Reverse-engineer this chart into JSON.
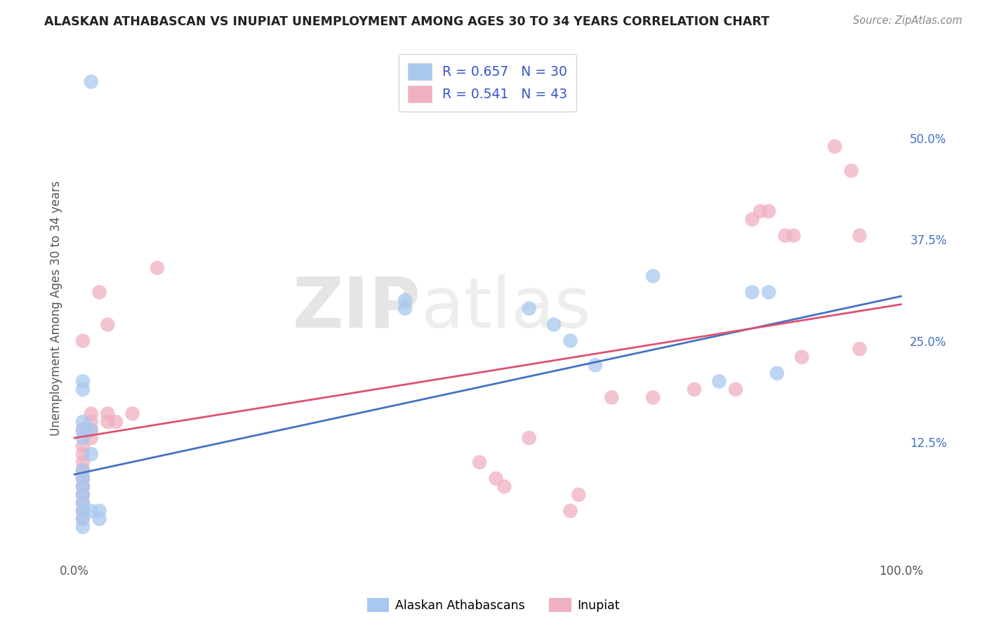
{
  "title": "ALASKAN ATHABASCAN VS INUPIAT UNEMPLOYMENT AMONG AGES 30 TO 34 YEARS CORRELATION CHART",
  "source": "Source: ZipAtlas.com",
  "ylabel": "Unemployment Among Ages 30 to 34 years",
  "legend_blue_r": "R = 0.657",
  "legend_blue_n": "N = 30",
  "legend_pink_r": "R = 0.541",
  "legend_pink_n": "N = 43",
  "legend_blue_label": "Alaskan Athabascans",
  "legend_pink_label": "Inupiat",
  "blue_color": "#a8c8f0",
  "pink_color": "#f0b0c0",
  "blue_line_color": "#4472c4",
  "pink_line_color": "#e05070",
  "blue_scatter": [
    [
      0.02,
      0.57
    ],
    [
      0.01,
      0.2
    ],
    [
      0.01,
      0.19
    ],
    [
      0.01,
      0.15
    ],
    [
      0.01,
      0.14
    ],
    [
      0.01,
      0.13
    ],
    [
      0.01,
      0.09
    ],
    [
      0.01,
      0.08
    ],
    [
      0.01,
      0.07
    ],
    [
      0.01,
      0.06
    ],
    [
      0.01,
      0.05
    ],
    [
      0.01,
      0.04
    ],
    [
      0.01,
      0.03
    ],
    [
      0.01,
      0.02
    ],
    [
      0.02,
      0.14
    ],
    [
      0.02,
      0.11
    ],
    [
      0.02,
      0.04
    ],
    [
      0.03,
      0.04
    ],
    [
      0.03,
      0.03
    ],
    [
      0.4,
      0.3
    ],
    [
      0.4,
      0.29
    ],
    [
      0.55,
      0.29
    ],
    [
      0.58,
      0.27
    ],
    [
      0.6,
      0.25
    ],
    [
      0.63,
      0.22
    ],
    [
      0.7,
      0.33
    ],
    [
      0.78,
      0.2
    ],
    [
      0.82,
      0.31
    ],
    [
      0.84,
      0.31
    ],
    [
      0.85,
      0.21
    ]
  ],
  "pink_scatter": [
    [
      0.01,
      0.25
    ],
    [
      0.01,
      0.14
    ],
    [
      0.01,
      0.12
    ],
    [
      0.01,
      0.11
    ],
    [
      0.01,
      0.1
    ],
    [
      0.01,
      0.09
    ],
    [
      0.01,
      0.08
    ],
    [
      0.01,
      0.07
    ],
    [
      0.01,
      0.06
    ],
    [
      0.01,
      0.05
    ],
    [
      0.01,
      0.04
    ],
    [
      0.01,
      0.03
    ],
    [
      0.02,
      0.16
    ],
    [
      0.02,
      0.15
    ],
    [
      0.02,
      0.14
    ],
    [
      0.02,
      0.13
    ],
    [
      0.03,
      0.31
    ],
    [
      0.04,
      0.27
    ],
    [
      0.04,
      0.16
    ],
    [
      0.04,
      0.15
    ],
    [
      0.05,
      0.15
    ],
    [
      0.07,
      0.16
    ],
    [
      0.1,
      0.34
    ],
    [
      0.49,
      0.1
    ],
    [
      0.51,
      0.08
    ],
    [
      0.52,
      0.07
    ],
    [
      0.55,
      0.13
    ],
    [
      0.6,
      0.04
    ],
    [
      0.61,
      0.06
    ],
    [
      0.65,
      0.18
    ],
    [
      0.7,
      0.18
    ],
    [
      0.75,
      0.19
    ],
    [
      0.8,
      0.19
    ],
    [
      0.82,
      0.4
    ],
    [
      0.83,
      0.41
    ],
    [
      0.84,
      0.41
    ],
    [
      0.86,
      0.38
    ],
    [
      0.87,
      0.38
    ],
    [
      0.88,
      0.23
    ],
    [
      0.92,
      0.49
    ],
    [
      0.94,
      0.46
    ],
    [
      0.95,
      0.38
    ],
    [
      0.95,
      0.24
    ]
  ],
  "blue_trend_x": [
    0.0,
    1.0
  ],
  "blue_trend_y": [
    0.085,
    0.305
  ],
  "pink_trend_x": [
    0.0,
    1.0
  ],
  "pink_trend_y": [
    0.13,
    0.295
  ],
  "xlim": [
    -0.005,
    1.005
  ],
  "ylim": [
    -0.02,
    0.6
  ],
  "ytick_vals": [
    0.125,
    0.25,
    0.375,
    0.5
  ],
  "ytick_labels": [
    "12.5%",
    "25.0%",
    "37.5%",
    "50.0%"
  ],
  "xtick_vals": [
    0.0,
    0.25,
    0.5,
    0.75,
    1.0
  ],
  "xtick_labels": [
    "0.0%",
    "",
    "",
    "",
    "100.0%"
  ],
  "watermark_zip": "ZIP",
  "watermark_atlas": "atlas",
  "background_color": "#ffffff",
  "grid_color": "#d0d0d0",
  "title_color": "#222222",
  "source_color": "#888888",
  "ylabel_color": "#555555",
  "tick_color": "#555555",
  "right_tick_color": "#4472c4"
}
